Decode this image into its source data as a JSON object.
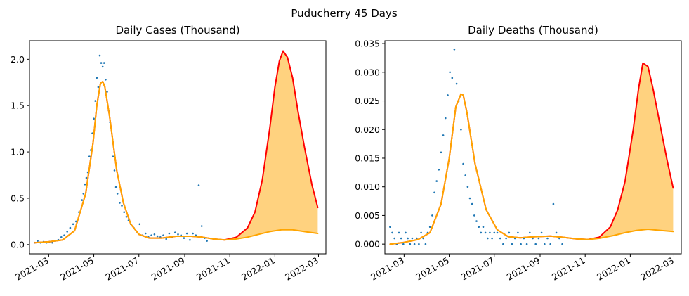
{
  "figure": {
    "suptitle": "Puducherry 45 Days"
  },
  "colors": {
    "observed": "#1f77b4",
    "upper": "#ff0000",
    "lower": "#ffa500",
    "band": "#ffd27f"
  },
  "chart_data": [
    {
      "type": "scatter+line",
      "title": "Daily Cases (Thousand)",
      "xlabel": "",
      "ylabel": "",
      "x_type": "date",
      "xlim": [
        "2021-02-03",
        "2022-03-11"
      ],
      "ylim": [
        -0.1,
        2.2
      ],
      "xticks": [
        "2021-03-01",
        "2021-05-01",
        "2021-07-01",
        "2021-09-01",
        "2021-11-01",
        "2022-01-01",
        "2022-03-01"
      ],
      "xtick_labels": [
        "2021-03",
        "2021-05",
        "2021-07",
        "2021-09",
        "2021-11",
        "2022-01",
        "2022-03"
      ],
      "yticks": [
        0.0,
        0.5,
        1.0,
        1.5,
        2.0
      ],
      "ytick_labels": [
        "0.0",
        "0.5",
        "1.0",
        "1.5",
        "2.0"
      ],
      "grid": false,
      "legend": "none",
      "scatter": {
        "dates": [
          "2021-02-10",
          "2021-02-14",
          "2021-02-18",
          "2021-02-22",
          "2021-02-26",
          "2021-03-02",
          "2021-03-06",
          "2021-03-10",
          "2021-03-14",
          "2021-03-18",
          "2021-03-22",
          "2021-03-26",
          "2021-03-30",
          "2021-04-03",
          "2021-04-07",
          "2021-04-11",
          "2021-04-15",
          "2021-04-17",
          "2021-04-19",
          "2021-04-21",
          "2021-04-23",
          "2021-04-25",
          "2021-04-27",
          "2021-04-29",
          "2021-05-01",
          "2021-05-03",
          "2021-05-05",
          "2021-05-07",
          "2021-05-09",
          "2021-05-11",
          "2021-05-13",
          "2021-05-15",
          "2021-05-17",
          "2021-05-19",
          "2021-05-21",
          "2021-05-23",
          "2021-05-25",
          "2021-05-27",
          "2021-05-29",
          "2021-05-31",
          "2021-06-02",
          "2021-06-05",
          "2021-06-08",
          "2021-06-11",
          "2021-06-14",
          "2021-06-17",
          "2021-06-20",
          "2021-06-24",
          "2021-06-28",
          "2021-07-02",
          "2021-07-06",
          "2021-07-10",
          "2021-07-14",
          "2021-07-18",
          "2021-07-22",
          "2021-07-26",
          "2021-07-30",
          "2021-08-03",
          "2021-08-07",
          "2021-08-11",
          "2021-08-15",
          "2021-08-19",
          "2021-08-23",
          "2021-08-27",
          "2021-08-31",
          "2021-09-04",
          "2021-09-08",
          "2021-09-12",
          "2021-09-16",
          "2021-09-20",
          "2021-09-24",
          "2021-09-28",
          "2021-10-01"
        ],
        "values": [
          0.02,
          0.04,
          0.02,
          0.03,
          0.02,
          0.03,
          0.02,
          0.04,
          0.05,
          0.08,
          0.1,
          0.14,
          0.18,
          0.22,
          0.25,
          0.35,
          0.48,
          0.55,
          0.65,
          0.72,
          0.78,
          0.95,
          1.02,
          1.2,
          1.36,
          1.55,
          1.8,
          1.7,
          2.04,
          1.96,
          1.92,
          1.96,
          1.78,
          1.65,
          1.45,
          1.32,
          1.25,
          0.95,
          0.8,
          0.62,
          0.55,
          0.45,
          0.42,
          0.35,
          0.3,
          0.26,
          0.22,
          0.18,
          0.14,
          0.22,
          0.1,
          0.12,
          0.08,
          0.1,
          0.11,
          0.09,
          0.08,
          0.1,
          0.06,
          0.12,
          0.08,
          0.13,
          0.11,
          0.1,
          0.07,
          0.12,
          0.05,
          0.12,
          0.1,
          0.64,
          0.2,
          0.07,
          0.04
        ]
      },
      "upper_curve": {
        "dates": [
          "2021-02-10",
          "2021-03-01",
          "2021-03-20",
          "2021-04-05",
          "2021-04-20",
          "2021-04-30",
          "2021-05-05",
          "2021-05-10",
          "2021-05-13",
          "2021-05-16",
          "2021-05-22",
          "2021-06-01",
          "2021-06-10",
          "2021-06-20",
          "2021-07-01",
          "2021-07-15",
          "2021-08-01",
          "2021-08-20",
          "2021-09-10",
          "2021-09-25",
          "2021-10-10",
          "2021-10-25",
          "2021-11-10",
          "2021-11-25",
          "2021-12-05",
          "2021-12-15",
          "2021-12-25",
          "2022-01-01",
          "2022-01-07",
          "2022-01-12",
          "2022-01-18",
          "2022-01-25",
          "2022-02-01",
          "2022-02-10",
          "2022-02-20",
          "2022-02-28"
        ],
        "values": [
          0.02,
          0.03,
          0.05,
          0.15,
          0.55,
          1.1,
          1.5,
          1.74,
          1.76,
          1.7,
          1.4,
          0.8,
          0.45,
          0.22,
          0.11,
          0.07,
          0.07,
          0.09,
          0.09,
          0.08,
          0.06,
          0.05,
          0.08,
          0.18,
          0.35,
          0.7,
          1.25,
          1.7,
          1.98,
          2.09,
          2.02,
          1.8,
          1.45,
          1.05,
          0.65,
          0.4
        ]
      },
      "lower_curve": {
        "dates": [
          "2021-02-10",
          "2021-03-01",
          "2021-03-20",
          "2021-04-05",
          "2021-04-20",
          "2021-04-30",
          "2021-05-05",
          "2021-05-10",
          "2021-05-13",
          "2021-05-16",
          "2021-05-22",
          "2021-06-01",
          "2021-06-10",
          "2021-06-20",
          "2021-07-01",
          "2021-07-15",
          "2021-08-01",
          "2021-08-20",
          "2021-09-10",
          "2021-09-25",
          "2021-10-10",
          "2021-10-25",
          "2021-11-10",
          "2021-11-25",
          "2021-12-10",
          "2021-12-25",
          "2022-01-10",
          "2022-01-25",
          "2022-02-10",
          "2022-02-28"
        ],
        "values": [
          0.02,
          0.03,
          0.05,
          0.15,
          0.55,
          1.1,
          1.5,
          1.74,
          1.76,
          1.7,
          1.4,
          0.8,
          0.45,
          0.22,
          0.11,
          0.07,
          0.07,
          0.09,
          0.09,
          0.08,
          0.06,
          0.05,
          0.06,
          0.08,
          0.11,
          0.14,
          0.16,
          0.16,
          0.14,
          0.12
        ]
      }
    },
    {
      "type": "scatter+line",
      "title": "Daily Deaths (Thousand)",
      "xlabel": "",
      "ylabel": "",
      "x_type": "date",
      "xlim": [
        "2021-02-03",
        "2022-03-11"
      ],
      "ylim": [
        -0.0017,
        0.0355
      ],
      "xticks": [
        "2021-03-01",
        "2021-05-01",
        "2021-07-01",
        "2021-09-01",
        "2021-11-01",
        "2022-01-01",
        "2022-03-01"
      ],
      "xtick_labels": [
        "2021-03",
        "2021-05",
        "2021-07",
        "2021-09",
        "2021-11",
        "2022-01",
        "2022-03"
      ],
      "yticks": [
        0.0,
        0.005,
        0.01,
        0.015,
        0.02,
        0.025,
        0.03,
        0.035
      ],
      "ytick_labels": [
        "0.000",
        "0.005",
        "0.010",
        "0.015",
        "0.020",
        "0.025",
        "0.030",
        "0.035"
      ],
      "grid": false,
      "legend": "none",
      "scatter": {
        "dates": [
          "2021-02-10",
          "2021-02-13",
          "2021-02-16",
          "2021-02-19",
          "2021-02-22",
          "2021-02-25",
          "2021-02-28",
          "2021-03-03",
          "2021-03-06",
          "2021-03-09",
          "2021-03-12",
          "2021-03-15",
          "2021-03-18",
          "2021-03-21",
          "2021-03-24",
          "2021-03-27",
          "2021-03-30",
          "2021-04-02",
          "2021-04-05",
          "2021-04-08",
          "2021-04-11",
          "2021-04-14",
          "2021-04-17",
          "2021-04-20",
          "2021-04-23",
          "2021-04-26",
          "2021-04-29",
          "2021-05-02",
          "2021-05-05",
          "2021-05-08",
          "2021-05-11",
          "2021-05-14",
          "2021-05-17",
          "2021-05-20",
          "2021-05-23",
          "2021-05-26",
          "2021-05-29",
          "2021-06-01",
          "2021-06-04",
          "2021-06-07",
          "2021-06-10",
          "2021-06-13",
          "2021-06-16",
          "2021-06-19",
          "2021-06-22",
          "2021-06-25",
          "2021-06-28",
          "2021-07-01",
          "2021-07-05",
          "2021-07-09",
          "2021-07-13",
          "2021-07-17",
          "2021-07-21",
          "2021-07-25",
          "2021-07-29",
          "2021-08-02",
          "2021-08-06",
          "2021-08-10",
          "2021-08-14",
          "2021-08-18",
          "2021-08-22",
          "2021-08-26",
          "2021-08-30",
          "2021-09-03",
          "2021-09-07",
          "2021-09-11",
          "2021-09-15",
          "2021-09-19",
          "2021-09-23",
          "2021-09-27",
          "2021-10-01"
        ],
        "values": [
          0.003,
          0.002,
          0.001,
          0.0,
          0.002,
          0.001,
          0.0,
          0.002,
          0.001,
          0.0,
          0.001,
          0.0,
          0.001,
          0.0,
          0.002,
          0.001,
          0.0,
          0.002,
          0.003,
          0.005,
          0.009,
          0.011,
          0.013,
          0.016,
          0.019,
          0.022,
          0.026,
          0.03,
          0.029,
          0.034,
          0.028,
          0.025,
          0.02,
          0.014,
          0.012,
          0.01,
          0.008,
          0.007,
          0.005,
          0.004,
          0.003,
          0.002,
          0.003,
          0.002,
          0.001,
          0.002,
          0.001,
          0.002,
          0.002,
          0.001,
          0.0,
          0.001,
          0.002,
          0.0,
          0.001,
          0.002,
          0.0,
          0.001,
          0.0,
          0.002,
          0.001,
          0.0,
          0.001,
          0.002,
          0.0,
          0.001,
          0.0,
          0.007,
          0.002,
          0.001,
          0.0
        ]
      },
      "upper_curve": {
        "dates": [
          "2021-02-10",
          "2021-03-01",
          "2021-03-20",
          "2021-04-05",
          "2021-04-20",
          "2021-05-01",
          "2021-05-10",
          "2021-05-17",
          "2021-05-20",
          "2021-05-25",
          "2021-06-05",
          "2021-06-20",
          "2021-07-05",
          "2021-07-20",
          "2021-08-05",
          "2021-08-25",
          "2021-09-15",
          "2021-10-01",
          "2021-10-20",
          "2021-11-05",
          "2021-11-20",
          "2021-12-05",
          "2021-12-15",
          "2021-12-25",
          "2022-01-05",
          "2022-01-12",
          "2022-01-18",
          "2022-01-25",
          "2022-02-01",
          "2022-02-10",
          "2022-02-20",
          "2022-02-28"
        ],
        "values": [
          0.0,
          0.0003,
          0.0008,
          0.002,
          0.007,
          0.015,
          0.024,
          0.0262,
          0.026,
          0.023,
          0.014,
          0.006,
          0.0025,
          0.0013,
          0.0011,
          0.0013,
          0.0014,
          0.0012,
          0.0009,
          0.0008,
          0.0012,
          0.003,
          0.006,
          0.011,
          0.02,
          0.027,
          0.0316,
          0.031,
          0.027,
          0.021,
          0.0145,
          0.0098
        ]
      },
      "lower_curve": {
        "dates": [
          "2021-02-10",
          "2021-03-01",
          "2021-03-20",
          "2021-04-05",
          "2021-04-20",
          "2021-05-01",
          "2021-05-10",
          "2021-05-17",
          "2021-05-20",
          "2021-05-25",
          "2021-06-05",
          "2021-06-20",
          "2021-07-05",
          "2021-07-20",
          "2021-08-05",
          "2021-08-25",
          "2021-09-15",
          "2021-10-01",
          "2021-10-20",
          "2021-11-05",
          "2021-11-20",
          "2021-12-10",
          "2021-12-25",
          "2022-01-10",
          "2022-01-25",
          "2022-02-10",
          "2022-02-28"
        ],
        "values": [
          0.0,
          0.0003,
          0.0008,
          0.002,
          0.007,
          0.015,
          0.024,
          0.0262,
          0.026,
          0.023,
          0.014,
          0.006,
          0.0025,
          0.0013,
          0.0011,
          0.0013,
          0.0014,
          0.0012,
          0.0009,
          0.0008,
          0.001,
          0.0015,
          0.002,
          0.0024,
          0.0026,
          0.0024,
          0.0022
        ]
      }
    }
  ]
}
